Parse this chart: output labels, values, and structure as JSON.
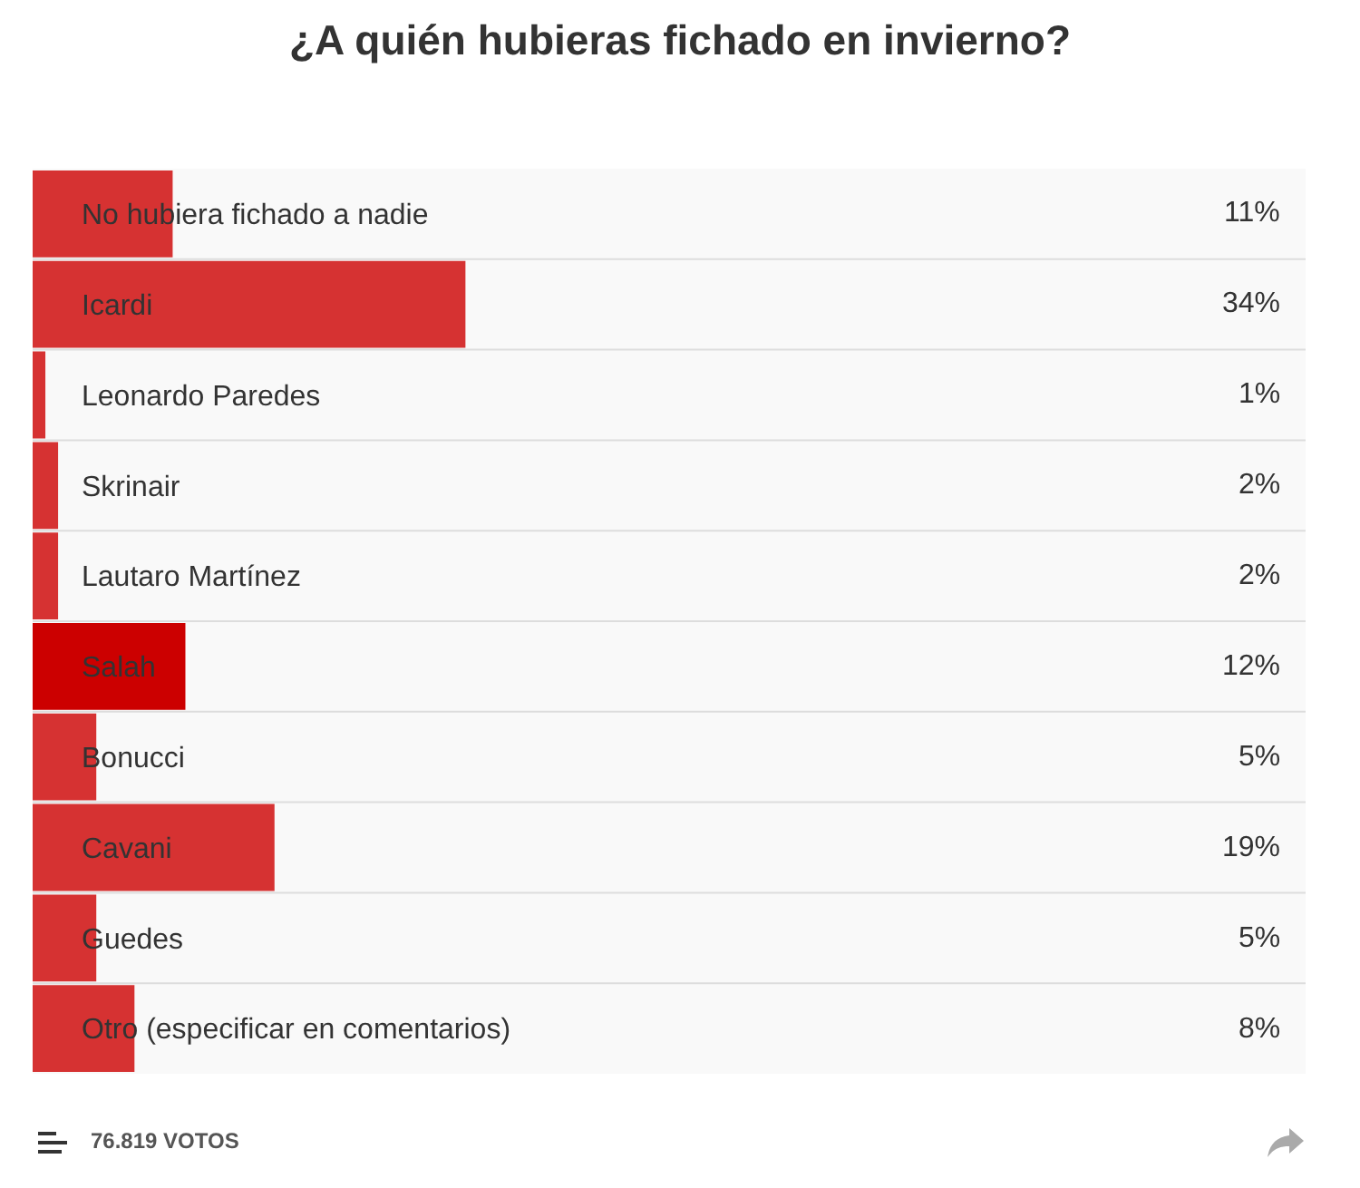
{
  "chart_data": {
    "type": "bar",
    "orientation": "horizontal",
    "title": "¿A quién hubieras fichado en invierno?",
    "categories": [
      "No hubiera fichado a nadie",
      "Icardi",
      "Leonardo Paredes",
      "Skrinair",
      "Lautaro Martínez",
      "Salah",
      "Bonucci",
      "Cavani",
      "Guedes",
      "Otro (especificar en comentarios)"
    ],
    "values": [
      11,
      34,
      1,
      2,
      2,
      12,
      5,
      19,
      5,
      8
    ],
    "colors": [
      "#d63232",
      "#d63232",
      "#d63232",
      "#d63232",
      "#d63232",
      "#cc0000",
      "#d63232",
      "#d63232",
      "#d63232",
      "#d63232"
    ],
    "value_labels": [
      "11%",
      "34%",
      "1%",
      "2%",
      "2%",
      "12%",
      "5%",
      "19%",
      "5%",
      "8%"
    ],
    "xlim": [
      0,
      100
    ],
    "grid": "y",
    "tick_labels": "y",
    "annotations": [
      "76.819 VOTOS"
    ]
  }
}
